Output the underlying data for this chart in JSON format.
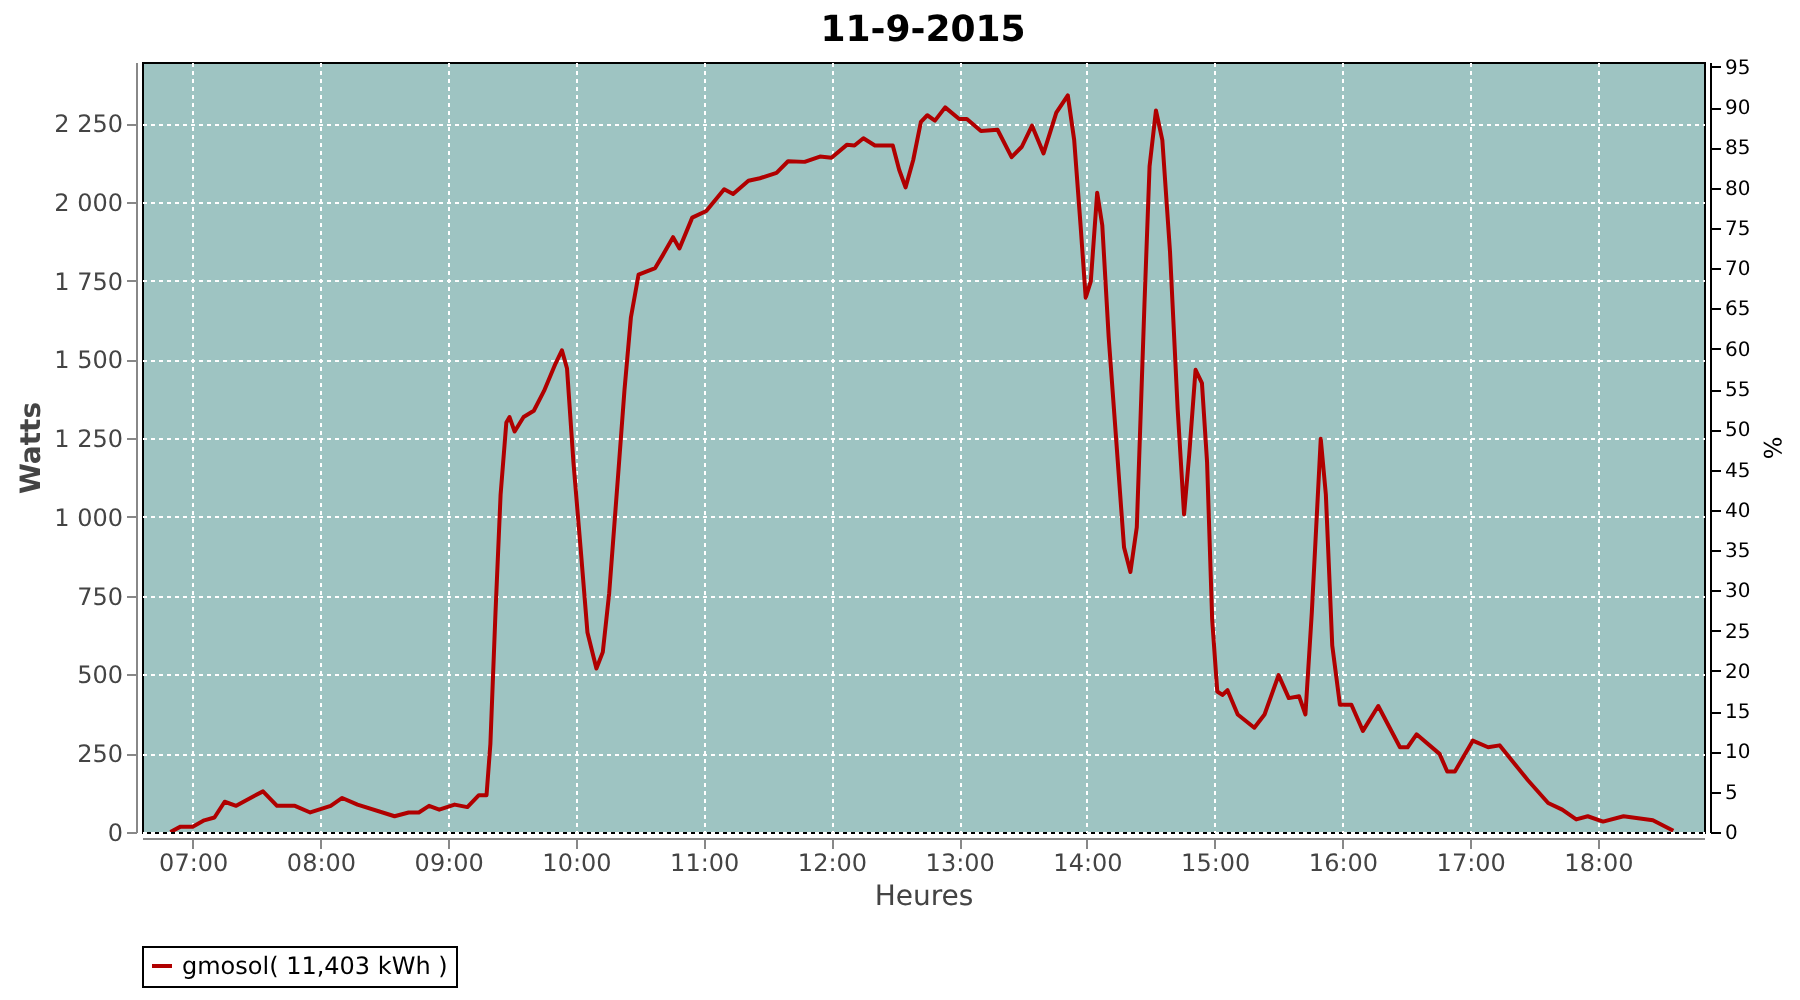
{
  "chart_data": {
    "type": "line",
    "title": "11-9-2015",
    "xlabel": "Heures",
    "ylabel": "Watts",
    "y2label": "%",
    "xlim": [
      6.603,
      18.83
    ],
    "xticks": [
      {
        "value": 7,
        "label": "07:00"
      },
      {
        "value": 8,
        "label": "08:00"
      },
      {
        "value": 9,
        "label": "09:00"
      },
      {
        "value": 10,
        "label": "10:00"
      },
      {
        "value": 11,
        "label": "11:00"
      },
      {
        "value": 12,
        "label": "12:00"
      },
      {
        "value": 13,
        "label": "13:00"
      },
      {
        "value": 14,
        "label": "14:00"
      },
      {
        "value": 15,
        "label": "15:00"
      },
      {
        "value": 16,
        "label": "16:00"
      },
      {
        "value": 17,
        "label": "17:00"
      },
      {
        "value": 18,
        "label": "18:00"
      }
    ],
    "ylim": [
      0,
      2444
    ],
    "yticks": [
      0,
      250,
      500,
      750,
      {
        "value": 1000,
        "label": "1 000"
      },
      {
        "value": 1250,
        "label": "1 250"
      },
      {
        "value": 1500,
        "label": "1 500"
      },
      {
        "value": 1750,
        "label": "1 750"
      },
      {
        "value": 2000,
        "label": "2 000"
      },
      {
        "value": 2250,
        "label": "2 250"
      }
    ],
    "y2lim": [
      0,
      95.6
    ],
    "y2ticks": [
      0,
      5,
      10,
      15,
      20,
      25,
      30,
      35,
      40,
      45,
      50,
      55,
      60,
      65,
      70,
      75,
      80,
      85,
      90,
      95
    ],
    "grid": true,
    "legend": "bottom",
    "marker": "none",
    "line_style": "solid",
    "series": [
      {
        "name": "gmosol( 11,403 kWh )",
        "color": "#b00000",
        "x": [
          6.825,
          6.905,
          7.0,
          7.09,
          7.17,
          7.25,
          7.34,
          7.47,
          7.55,
          7.66,
          7.8,
          7.92,
          8.08,
          8.17,
          8.29,
          8.58,
          8.69,
          8.77,
          8.85,
          8.93,
          9.05,
          9.15,
          9.24,
          9.3,
          9.33,
          9.37,
          9.41,
          9.455,
          9.48,
          9.52,
          9.59,
          9.67,
          9.75,
          9.84,
          9.89,
          9.93,
          9.98,
          10.04,
          10.09,
          10.16,
          10.21,
          10.26,
          10.33,
          10.38,
          10.43,
          10.49,
          10.62,
          10.68,
          10.76,
          10.81,
          10.91,
          11.02,
          11.16,
          11.23,
          11.35,
          11.44,
          11.57,
          11.66,
          11.79,
          11.91,
          12.0,
          12.12,
          12.18,
          12.25,
          12.34,
          12.48,
          12.53,
          12.58,
          12.64,
          12.7,
          12.75,
          12.81,
          12.89,
          13.0,
          13.06,
          13.17,
          13.3,
          13.41,
          13.49,
          13.57,
          13.66,
          13.76,
          13.85,
          13.9,
          13.95,
          13.99,
          14.03,
          14.08,
          14.12,
          14.17,
          14.23,
          14.29,
          14.34,
          14.39,
          14.45,
          14.49,
          14.54,
          14.59,
          14.65,
          14.71,
          14.76,
          14.8,
          14.85,
          14.9,
          14.94,
          14.98,
          15.02,
          15.06,
          15.1,
          15.18,
          15.31,
          15.39,
          15.5,
          15.58,
          15.66,
          15.71,
          15.76,
          15.83,
          15.87,
          15.92,
          15.98,
          16.07,
          16.16,
          16.28,
          16.45,
          16.51,
          16.58,
          16.76,
          16.82,
          16.88,
          17.02,
          17.14,
          17.23,
          17.45,
          17.61,
          17.72,
          17.83,
          17.92,
          18.04,
          18.2,
          18.43,
          18.59
        ],
        "values": [
          0,
          17,
          17,
          37,
          46,
          96,
          83,
          112,
          129,
          83,
          83,
          62,
          83,
          108,
          87,
          50,
          62,
          62,
          83,
          71,
          87,
          79,
          117,
          117,
          279,
          696,
          1071,
          1300,
          1317,
          1271,
          1317,
          1337,
          1400,
          1487,
          1529,
          1471,
          1175,
          883,
          633,
          519,
          571,
          758,
          1133,
          1404,
          1633,
          1769,
          1790,
          1831,
          1888,
          1852,
          1950,
          1971,
          2040,
          2025,
          2067,
          2075,
          2092,
          2129,
          2127,
          2144,
          2140,
          2181,
          2179,
          2202,
          2179,
          2179,
          2102,
          2046,
          2133,
          2254,
          2275,
          2258,
          2300,
          2263,
          2263,
          2225,
          2229,
          2142,
          2175,
          2242,
          2154,
          2283,
          2338,
          2196,
          1925,
          1696,
          1748,
          2029,
          1925,
          1571,
          1238,
          904,
          825,
          967,
          1675,
          2113,
          2290,
          2196,
          1842,
          1342,
          1008,
          1196,
          1467,
          1425,
          1175,
          675,
          446,
          435,
          450,
          373,
          331,
          373,
          498,
          425,
          431,
          373,
          696,
          1248,
          1071,
          592,
          404,
          404,
          321,
          400,
          269,
          269,
          310,
          248,
          192,
          192,
          290,
          269,
          275,
          165,
          92,
          71,
          40,
          50,
          33,
          50,
          37,
          4
        ]
      }
    ]
  }
}
